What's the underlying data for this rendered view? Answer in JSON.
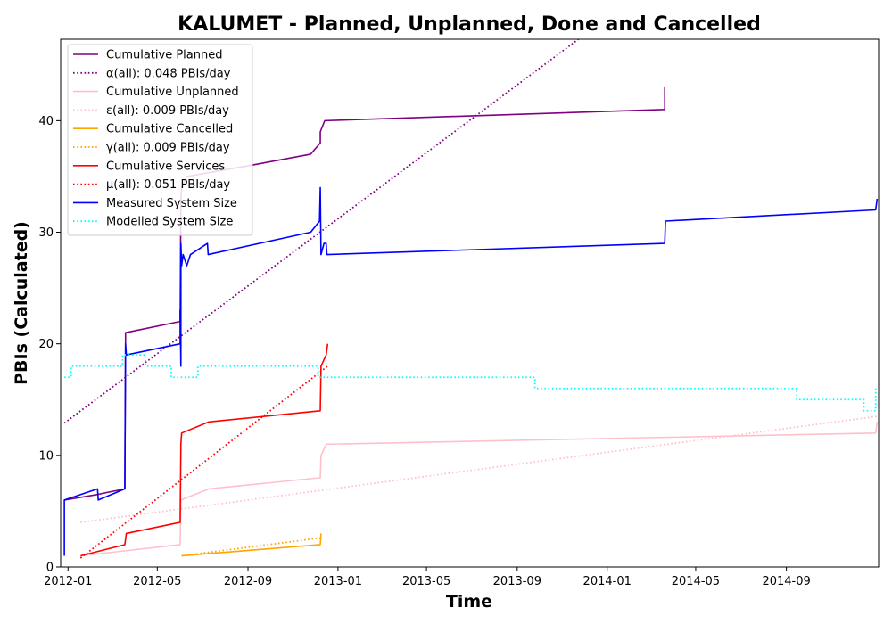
{
  "chart_data": {
    "type": "line",
    "title": "KALUMET - Planned, Unplanned, Done  and Cancelled",
    "xlabel": "Time",
    "ylabel": "PBIs (Calculated)",
    "xlim": [
      "2011-12-22",
      "2015-01-04"
    ],
    "ylim": [
      0,
      47.3
    ],
    "x_ticks": [
      "2012-01",
      "2012-05",
      "2012-09",
      "2013-01",
      "2013-05",
      "2013-09",
      "2014-01",
      "2014-05",
      "2014-09"
    ],
    "y_ticks": [
      0,
      10,
      20,
      30,
      40
    ],
    "grid": false,
    "legend_position": "upper-left",
    "series": [
      {
        "name": "Cumulative Planned",
        "style": "solid",
        "color": "#800080",
        "points": [
          [
            "2011-12-27",
            6
          ],
          [
            "2012-02-10",
            6.5
          ],
          [
            "2012-03-18",
            7
          ],
          [
            "2012-03-19",
            21
          ],
          [
            "2012-06-01",
            22
          ],
          [
            "2012-06-02",
            33
          ],
          [
            "2012-06-03",
            34
          ],
          [
            "2012-06-10",
            35
          ],
          [
            "2012-09-05",
            36
          ],
          [
            "2012-11-25",
            37
          ],
          [
            "2012-12-08",
            38
          ],
          [
            "2012-12-08",
            39
          ],
          [
            "2012-12-14",
            40
          ],
          [
            "2014-03-20",
            41
          ],
          [
            "2014-03-20",
            43
          ]
        ]
      },
      {
        "name": "α(all): 0.048 PBIs/day",
        "style": "dotted",
        "color": "#800080",
        "points": [
          [
            "2011-12-27",
            12.9
          ],
          [
            "2013-11-23",
            47.3
          ]
        ]
      },
      {
        "name": "Cumulative Unplanned",
        "style": "solid",
        "color": "#ffc0cb",
        "points": [
          [
            "2012-01-18",
            1
          ],
          [
            "2012-06-01",
            2
          ],
          [
            "2012-06-02",
            6
          ],
          [
            "2012-07-10",
            7
          ],
          [
            "2012-12-08",
            8
          ],
          [
            "2012-12-09",
            10
          ],
          [
            "2012-12-16",
            11
          ],
          [
            "2014-12-31",
            12
          ],
          [
            "2015-01-02",
            13
          ]
        ]
      },
      {
        "name": "ε(all): 0.009 PBIs/day",
        "style": "dotted",
        "color": "#ffc0cb",
        "points": [
          [
            "2012-01-18",
            4
          ],
          [
            "2015-01-02",
            13.5
          ]
        ]
      },
      {
        "name": "Cumulative Cancelled",
        "style": "solid",
        "color": "#ffa500",
        "points": [
          [
            "2012-06-03",
            1
          ],
          [
            "2012-12-08",
            2
          ],
          [
            "2012-12-09",
            3
          ]
        ]
      },
      {
        "name": "γ(all): 0.009 PBIs/day",
        "style": "dotted",
        "color": "#ffa500",
        "points": [
          [
            "2012-06-03",
            1
          ],
          [
            "2012-12-08",
            2.6
          ]
        ]
      },
      {
        "name": "Cumulative Services",
        "style": "solid",
        "color": "#ff0000",
        "points": [
          [
            "2012-01-18",
            1
          ],
          [
            "2012-03-18",
            2
          ],
          [
            "2012-03-20",
            3
          ],
          [
            "2012-06-01",
            4
          ],
          [
            "2012-06-02",
            11
          ],
          [
            "2012-06-03",
            12
          ],
          [
            "2012-07-10",
            13
          ],
          [
            "2012-12-08",
            14
          ],
          [
            "2012-12-09",
            18
          ],
          [
            "2012-12-16",
            19
          ],
          [
            "2012-12-18",
            20
          ]
        ]
      },
      {
        "name": "μ(all): 0.051 PBIs/day",
        "style": "dotted",
        "color": "#ff0000",
        "points": [
          [
            "2012-01-18",
            0.8
          ],
          [
            "2012-12-18",
            18
          ]
        ]
      },
      {
        "name": "Measured System Size",
        "style": "solid",
        "color": "#0000ff",
        "points": [
          [
            "2011-12-27",
            1
          ],
          [
            "2011-12-27",
            6
          ],
          [
            "2012-02-10",
            7
          ],
          [
            "2012-02-11",
            6
          ],
          [
            "2012-03-18",
            7
          ],
          [
            "2012-03-19",
            20
          ],
          [
            "2012-03-20",
            19
          ],
          [
            "2012-06-01",
            20
          ],
          [
            "2012-06-01",
            23
          ],
          [
            "2012-06-02",
            18
          ],
          [
            "2012-06-02",
            29
          ],
          [
            "2012-06-03",
            27
          ],
          [
            "2012-06-05",
            28
          ],
          [
            "2012-06-10",
            27
          ],
          [
            "2012-06-15",
            28
          ],
          [
            "2012-07-08",
            29
          ],
          [
            "2012-07-09",
            28
          ],
          [
            "2012-11-25",
            30
          ],
          [
            "2012-12-07",
            31
          ],
          [
            "2012-12-08",
            34
          ],
          [
            "2012-12-09",
            28
          ],
          [
            "2012-12-13",
            29
          ],
          [
            "2012-12-16",
            29
          ],
          [
            "2012-12-17",
            28
          ],
          [
            "2014-03-20",
            29
          ],
          [
            "2014-03-21",
            31
          ],
          [
            "2014-12-31",
            32
          ],
          [
            "2015-01-02",
            33
          ]
        ]
      },
      {
        "name": "Modelled System Size",
        "style": "dotted",
        "color": "#00ffff",
        "points": [
          [
            "2011-12-27",
            17
          ],
          [
            "2012-01-05",
            17
          ],
          [
            "2012-01-05",
            18
          ],
          [
            "2012-03-15",
            18
          ],
          [
            "2012-03-15",
            19
          ],
          [
            "2012-04-15",
            19
          ],
          [
            "2012-04-15",
            18
          ],
          [
            "2012-05-20",
            18
          ],
          [
            "2012-05-20",
            17
          ],
          [
            "2012-06-25",
            17
          ],
          [
            "2012-06-25",
            18
          ],
          [
            "2012-12-05",
            18
          ],
          [
            "2012-12-05",
            17
          ],
          [
            "2013-09-25",
            17
          ],
          [
            "2013-09-25",
            16
          ],
          [
            "2014-09-15",
            16
          ],
          [
            "2014-09-15",
            15
          ],
          [
            "2014-12-15",
            15
          ],
          [
            "2014-12-15",
            14
          ],
          [
            "2014-12-31",
            14
          ],
          [
            "2014-12-31",
            16
          ]
        ]
      }
    ]
  }
}
